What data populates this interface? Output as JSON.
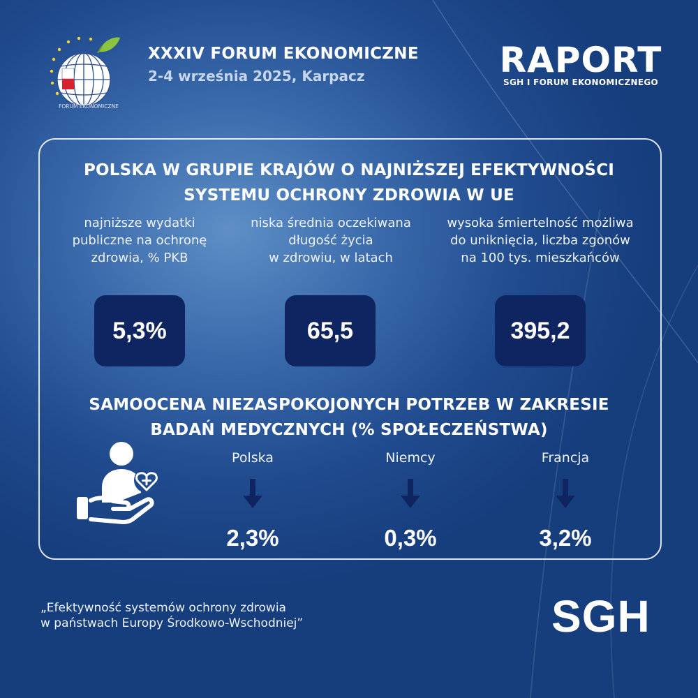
{
  "header": {
    "forum_title": "XXXIV FORUM EKONOMICZNE",
    "forum_date": "2-4 września 2025, Karpacz",
    "logo_text": "FORUM EKONOMICZNE",
    "raport_title": "RAPORT",
    "raport_subtitle": "SGH I FORUM EKONOMICZNEGO"
  },
  "section1": {
    "heading_line1": "POLSKA W GRUPIE KRAJÓW O NAJNIŻSZEJ EFEKTYWNOŚCI",
    "heading_line2": "SYSTEMU OCHRONY ZDROWIA W UE",
    "metrics": [
      {
        "label_lines": [
          "najniższe wydatki",
          "publiczne na ochronę",
          "zdrowia, % PKB"
        ],
        "value": "5,3%"
      },
      {
        "label_lines": [
          "niska średnia oczekiwana",
          "długość życia",
          "w zdrowiu, w latach"
        ],
        "value": "65,5"
      },
      {
        "label_lines": [
          "wysoka śmiertelność możliwa",
          "do uniknięcia, liczba zgonów",
          "na 100 tys. mieszkańców"
        ],
        "value": "395,2"
      }
    ]
  },
  "section2": {
    "heading_line1": "SAMOOCENA NIEZASPOKOJONYCH POTRZEB W ZAKRESIE",
    "heading_line2": "BADAŃ MEDYCZNYCH (% SPOŁECZEŃSTWA)",
    "icon": "health-care-hand-icon",
    "countries": [
      {
        "name": "Polska",
        "value": "2,3%"
      },
      {
        "name": "Niemcy",
        "value": "0,3%"
      },
      {
        "name": "Francja",
        "value": "3,2%"
      }
    ]
  },
  "footer": {
    "source_line1": "„Efektywność systemów ochrony zdrowia",
    "source_line2": "w państwach Europy Środkowo-Wschodniej”",
    "sgh_logo": "SGH"
  },
  "colors": {
    "background": "#1f4a8d",
    "box": "#0e2561",
    "arrow": "#0e2561",
    "flag_red": "#d9202e",
    "leaf_green": "#8bc53f"
  }
}
